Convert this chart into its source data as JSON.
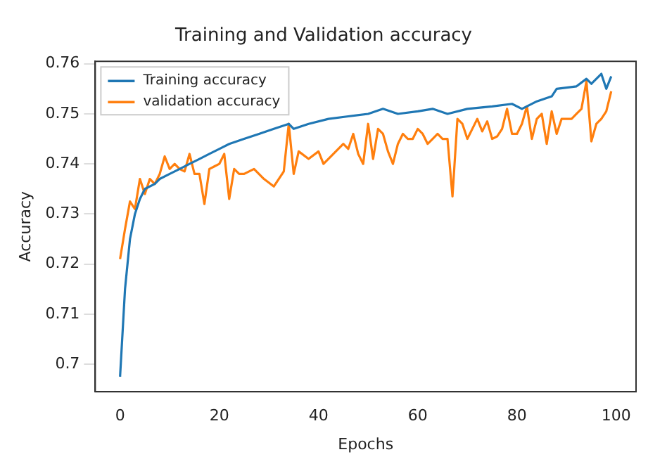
{
  "chart_data": {
    "type": "line",
    "title": "Training and Validation accuracy",
    "xlabel": "Epochs",
    "ylabel": "Accuracy",
    "xlim": [
      -5,
      104
    ],
    "xticks": [
      0,
      20,
      40,
      60,
      80,
      100
    ],
    "ylim": [
      0.6945,
      0.7605
    ],
    "yticks": [
      0.7,
      0.71,
      0.72,
      0.73,
      0.74,
      0.75,
      0.76
    ],
    "grid": false,
    "legend": "top left",
    "marker": "none",
    "line_style": "solid",
    "series": [
      {
        "name": "Training accuracy",
        "color": "#1f77b4",
        "x": [
          0,
          1,
          2,
          3,
          4,
          5,
          7,
          8,
          10,
          12,
          14,
          16,
          18,
          20,
          22,
          25,
          28,
          31,
          34,
          35,
          38,
          42,
          46,
          50,
          53,
          56,
          60,
          63,
          66,
          70,
          75,
          79,
          81,
          84,
          87,
          88,
          92,
          94,
          95,
          97,
          98,
          99
        ],
        "values": [
          0.6975,
          0.715,
          0.725,
          0.73,
          0.733,
          0.735,
          0.736,
          0.737,
          0.738,
          0.739,
          0.74,
          0.741,
          0.742,
          0.743,
          0.744,
          0.745,
          0.746,
          0.747,
          0.748,
          0.747,
          0.748,
          0.749,
          0.7495,
          0.75,
          0.751,
          0.75,
          0.7505,
          0.751,
          0.75,
          0.751,
          0.7515,
          0.752,
          0.751,
          0.7525,
          0.7535,
          0.755,
          0.7555,
          0.757,
          0.756,
          0.758,
          0.755,
          0.7575
        ]
      },
      {
        "name": "validation accuracy",
        "color": "#ff7f0e",
        "x": [
          0,
          1,
          2,
          3,
          4,
          5,
          6,
          7,
          8,
          9,
          10,
          11,
          12,
          13,
          14,
          15,
          16,
          17,
          18,
          19,
          20,
          21,
          22,
          23,
          24,
          25,
          27,
          29,
          31,
          33,
          34,
          35,
          36,
          38,
          40,
          41,
          43,
          45,
          46,
          47,
          48,
          49,
          50,
          51,
          52,
          53,
          54,
          55,
          56,
          57,
          58,
          59,
          60,
          61,
          62,
          63,
          64,
          65,
          66,
          67,
          68,
          69,
          70,
          71,
          72,
          73,
          74,
          75,
          76,
          77,
          78,
          79,
          80,
          81,
          82,
          83,
          84,
          85,
          86,
          87,
          88,
          89,
          90,
          91,
          92,
          93,
          94,
          95,
          96,
          97,
          98,
          99
        ],
        "values": [
          0.721,
          0.727,
          0.7325,
          0.731,
          0.737,
          0.734,
          0.737,
          0.736,
          0.738,
          0.7415,
          0.739,
          0.74,
          0.739,
          0.7385,
          0.742,
          0.738,
          0.738,
          0.732,
          0.739,
          0.7395,
          0.74,
          0.742,
          0.733,
          0.739,
          0.738,
          0.738,
          0.739,
          0.737,
          0.7355,
          0.7385,
          0.748,
          0.738,
          0.7425,
          0.741,
          0.7425,
          0.74,
          0.742,
          0.744,
          0.743,
          0.746,
          0.742,
          0.74,
          0.748,
          0.741,
          0.747,
          0.746,
          0.7425,
          0.74,
          0.744,
          0.746,
          0.745,
          0.745,
          0.747,
          0.746,
          0.744,
          0.745,
          0.746,
          0.745,
          0.745,
          0.7335,
          0.749,
          0.748,
          0.745,
          0.747,
          0.749,
          0.7465,
          0.7485,
          0.745,
          0.7455,
          0.747,
          0.751,
          0.746,
          0.746,
          0.748,
          0.7515,
          0.745,
          0.749,
          0.75,
          0.744,
          0.7505,
          0.746,
          0.749,
          0.749,
          0.749,
          0.75,
          0.751,
          0.7565,
          0.7445,
          0.748,
          0.749,
          0.7505,
          0.7545
        ]
      }
    ]
  }
}
